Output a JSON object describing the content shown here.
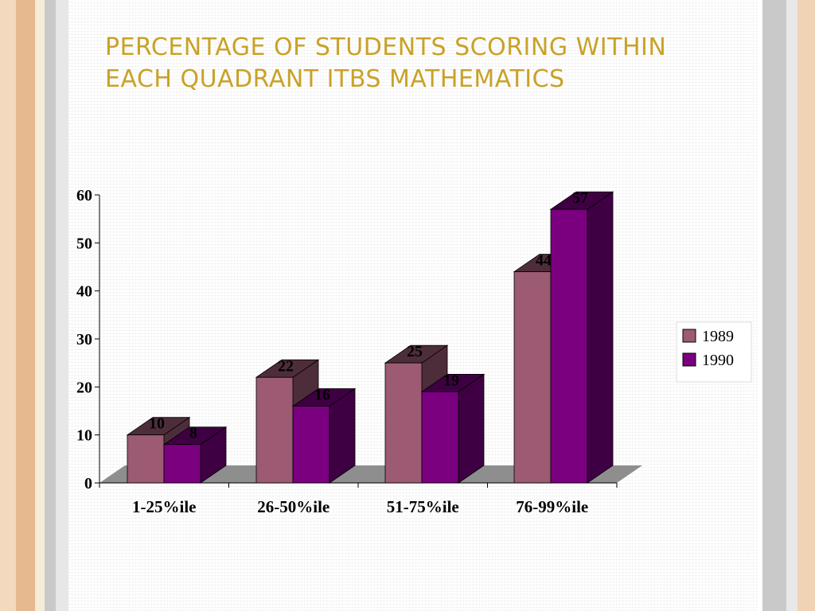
{
  "slide": {
    "title_line1": "PERCENTAGE OF STUDENTS SCORING WITHIN",
    "title_line2": "EACH QUADRANT ITBS MATHEMATICS"
  },
  "colors": {
    "series_1989_front": "#9c5b73",
    "series_1989_side": "#4e2d3a",
    "series_1990_front": "#7a0080",
    "series_1990_side": "#3f0043",
    "floor": "#8e8e8e",
    "title": "#c9a227"
  },
  "chart_data": {
    "type": "bar",
    "style": "3d-clustered",
    "title": "PERCENTAGE OF STUDENTS SCORING WITHIN EACH QUADRANT ITBS MATHEMATICS",
    "categories": [
      "1-25%ile",
      "26-50%ile",
      "51-75%ile",
      "76-99%ile"
    ],
    "series": [
      {
        "name": "1989",
        "values": [
          10,
          22,
          25,
          44
        ]
      },
      {
        "name": "1990",
        "values": [
          8,
          16,
          19,
          57
        ]
      }
    ],
    "ylim": [
      0,
      60
    ],
    "yticks": [
      0,
      10,
      20,
      30,
      40,
      50,
      60
    ],
    "data_labels": true,
    "legend": "right",
    "grid": false
  }
}
